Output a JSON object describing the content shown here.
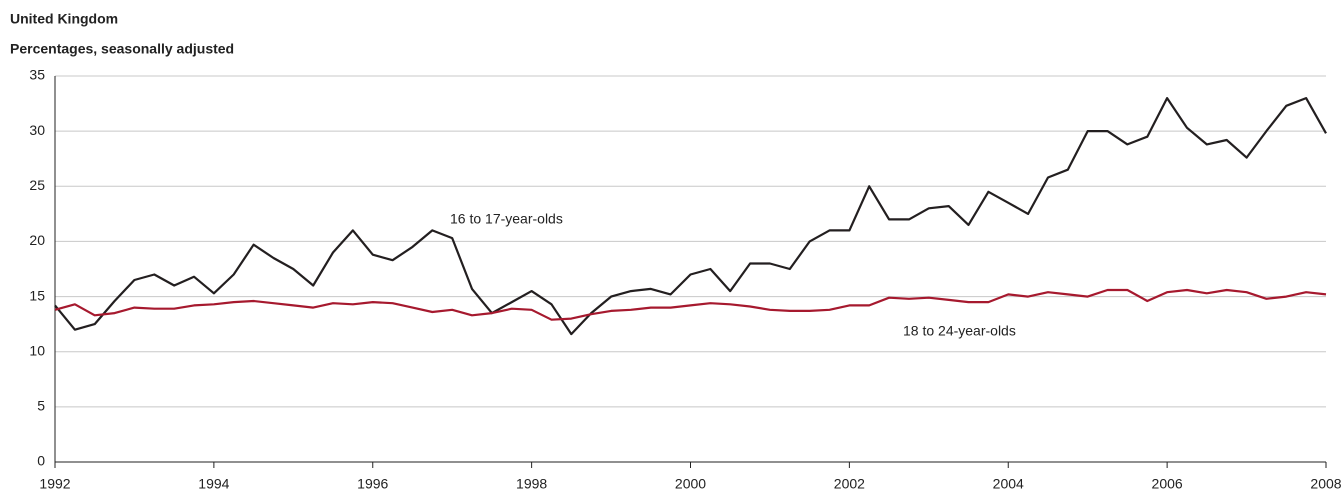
{
  "chart_data": {
    "type": "line",
    "title": "United Kingdom",
    "subtitle": "Percentages, seasonally adjusted",
    "annotations": [
      "16 to 17-year-olds",
      "18 to 24-year-olds"
    ],
    "x": [
      1992,
      1992.25,
      1992.5,
      1992.75,
      1993,
      1993.25,
      1993.5,
      1993.75,
      1994,
      1994.25,
      1994.5,
      1994.75,
      1995,
      1995.25,
      1995.5,
      1995.75,
      1996,
      1996.25,
      1996.5,
      1996.75,
      1997,
      1997.25,
      1997.5,
      1997.75,
      1998,
      1998.25,
      1998.5,
      1998.75,
      1999,
      1999.25,
      1999.5,
      1999.75,
      2000,
      2000.25,
      2000.5,
      2000.75,
      2001,
      2001.25,
      2001.5,
      2001.75,
      2002,
      2002.25,
      2002.5,
      2002.75,
      2003,
      2003.25,
      2003.5,
      2003.75,
      2004,
      2004.25,
      2004.5,
      2004.75,
      2005,
      2005.25,
      2005.5,
      2005.75,
      2006,
      2006.25,
      2006.5,
      2006.75,
      2007,
      2007.25,
      2007.5,
      2007.75,
      2008
    ],
    "series": [
      {
        "name": "16 to 17-year-olds",
        "color": "#231f20",
        "values": [
          14.2,
          12.0,
          12.5,
          14.6,
          16.5,
          17.0,
          16.0,
          16.8,
          15.3,
          17.0,
          19.7,
          18.5,
          17.5,
          16.0,
          19.0,
          21.0,
          18.8,
          18.3,
          19.5,
          21.0,
          20.3,
          15.7,
          13.5,
          14.5,
          15.5,
          14.3,
          11.6,
          13.5,
          15.0,
          15.5,
          15.7,
          15.2,
          17.0,
          17.5,
          15.5,
          18.0,
          18.0,
          17.5,
          20.0,
          21.0,
          21.0,
          25.0,
          22.0,
          22.0,
          23.0,
          23.2,
          21.5,
          24.5,
          23.5,
          22.5,
          25.8,
          26.5,
          30.0,
          30.0,
          28.8,
          29.5,
          33.0,
          30.3,
          28.8,
          29.2,
          27.6,
          30.0,
          32.3,
          33.0,
          29.8
        ]
      },
      {
        "name": "18 to 24-year-olds",
        "color": "#a6192e",
        "values": [
          13.8,
          14.3,
          13.3,
          13.5,
          14.0,
          13.9,
          13.9,
          14.2,
          14.3,
          14.5,
          14.6,
          14.4,
          14.2,
          14.0,
          14.4,
          14.3,
          14.5,
          14.4,
          14.0,
          13.6,
          13.8,
          13.3,
          13.5,
          13.9,
          13.8,
          12.9,
          13.0,
          13.4,
          13.7,
          13.8,
          14.0,
          14.0,
          14.2,
          14.4,
          14.3,
          14.1,
          13.8,
          13.7,
          13.7,
          13.8,
          14.2,
          14.2,
          14.9,
          14.8,
          14.9,
          14.7,
          14.5,
          14.5,
          15.2,
          15.0,
          15.4,
          15.2,
          15.0,
          15.6,
          15.6,
          14.6,
          15.4,
          15.6,
          15.3,
          15.6,
          15.4,
          14.8,
          15.0,
          15.4,
          15.2
        ]
      }
    ],
    "xlim": [
      1992,
      2008
    ],
    "xticks": [
      1992,
      1994,
      1996,
      1998,
      2000,
      2002,
      2004,
      2006,
      2008
    ],
    "ylim": [
      0,
      35
    ],
    "yticks": [
      0,
      5,
      10,
      15,
      20,
      25,
      30,
      35
    ],
    "grid": true
  }
}
